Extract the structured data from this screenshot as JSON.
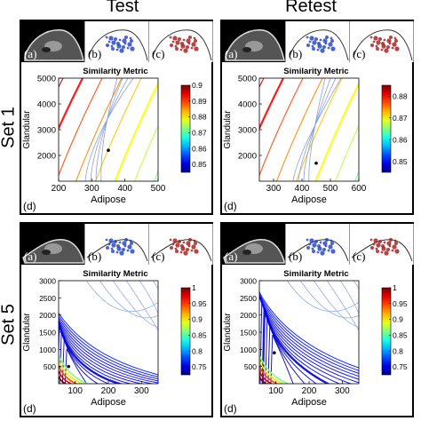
{
  "columns": [
    "Test",
    "Retest"
  ],
  "rows": [
    "Set 1",
    "Set 5"
  ],
  "thumb_labels": [
    "(a)",
    "(b)",
    "(c)"
  ],
  "plot_label": "(d)",
  "chart_data": [
    {
      "id": "set1-test",
      "type": "contour",
      "title": "Similarity Metric",
      "xlabel": "Adipose",
      "ylabel": "Glandular",
      "xlim": [
        200,
        500
      ],
      "ylim": [
        1000,
        5000
      ],
      "xticks": [
        200,
        300,
        400,
        500
      ],
      "yticks": [
        2000,
        3000,
        4000,
        5000
      ],
      "colorbar": {
        "range": [
          0.845,
          0.9
        ],
        "ticks": [
          0.85,
          0.86,
          0.87,
          0.88,
          0.89,
          0.9
        ]
      },
      "optimum": {
        "x": 350,
        "y": 2200
      }
    },
    {
      "id": "set1-retest",
      "type": "contour",
      "title": "Similarity Metric",
      "xlabel": "Adipose",
      "ylabel": "Glandular",
      "xlim": [
        250,
        600
      ],
      "ylim": [
        1000,
        5000
      ],
      "xticks": [
        300,
        400,
        500,
        600
      ],
      "yticks": [
        2000,
        3000,
        4000,
        5000
      ],
      "colorbar": {
        "range": [
          0.845,
          0.885
        ],
        "ticks": [
          0.85,
          0.86,
          0.87,
          0.88
        ]
      },
      "optimum": {
        "x": 450,
        "y": 1700
      }
    },
    {
      "id": "set5-test",
      "type": "contour",
      "title": "Similarity Metric",
      "xlabel": "Adipose",
      "ylabel": "Glandular",
      "xlim": [
        50,
        350
      ],
      "ylim": [
        0,
        3000
      ],
      "xticks": [
        100,
        200,
        300
      ],
      "yticks": [
        500,
        1000,
        1500,
        2000,
        2500,
        3000
      ],
      "colorbar": {
        "range": [
          0.725,
          1
        ],
        "ticks": [
          0.75,
          0.8,
          0.85,
          0.9,
          0.95,
          1
        ]
      },
      "optimum": {
        "x": 80,
        "y": 500
      }
    },
    {
      "id": "set5-retest",
      "type": "contour",
      "title": "Similarity Metric",
      "xlabel": "Adipose",
      "ylabel": "Glandular",
      "xlim": [
        50,
        350
      ],
      "ylim": [
        0,
        3000
      ],
      "xticks": [
        100,
        200,
        300
      ],
      "yticks": [
        500,
        1000,
        1500,
        2000,
        2500,
        3000
      ],
      "colorbar": {
        "range": [
          0.725,
          1
        ],
        "ticks": [
          0.75,
          0.8,
          0.85,
          0.9,
          0.95,
          1
        ]
      },
      "optimum": {
        "x": 95,
        "y": 900
      }
    }
  ]
}
